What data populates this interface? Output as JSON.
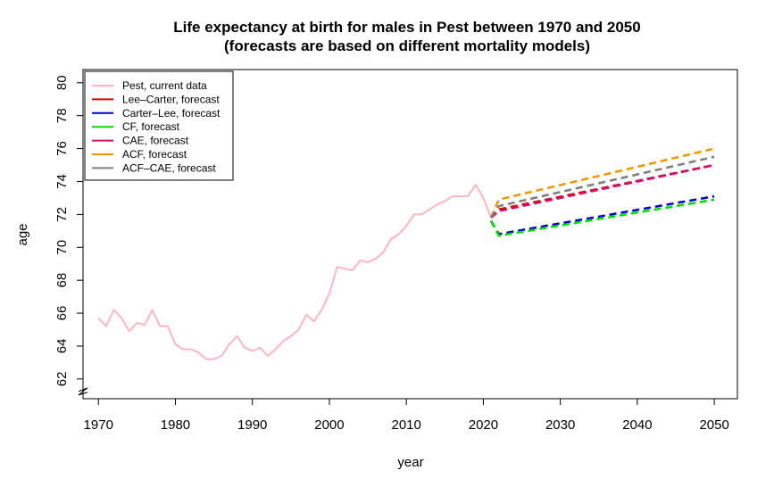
{
  "chart_data": {
    "type": "line",
    "title": "Life expectancy at birth for males in Pest between 1970 and 2050",
    "subtitle": "(forecasts are based on different mortality models)",
    "xlabel": "year",
    "ylabel": "age",
    "xlim": [
      1968,
      2053
    ],
    "ylim": [
      60.8,
      80.8
    ],
    "y_axis_break": true,
    "x_ticks": [
      1970,
      1980,
      1990,
      2000,
      2010,
      2020,
      2030,
      2040,
      2050
    ],
    "y_ticks": [
      62,
      64,
      66,
      68,
      70,
      72,
      74,
      76,
      78,
      80
    ],
    "grid": false,
    "legend_position": "top-left",
    "series": [
      {
        "name": "Pest, current data",
        "color": "#ffb6c1",
        "style": "solid",
        "x": [
          1970,
          1971,
          1972,
          1973,
          1974,
          1975,
          1976,
          1977,
          1978,
          1979,
          1980,
          1981,
          1982,
          1983,
          1984,
          1985,
          1986,
          1987,
          1988,
          1989,
          1990,
          1991,
          1992,
          1993,
          1994,
          1995,
          1996,
          1997,
          1998,
          1999,
          2000,
          2001,
          2002,
          2003,
          2004,
          2005,
          2006,
          2007,
          2008,
          2009,
          2010,
          2011,
          2012,
          2013,
          2014,
          2015,
          2016,
          2017,
          2018,
          2019,
          2020,
          2021
        ],
        "y": [
          65.7,
          65.2,
          66.2,
          65.7,
          64.9,
          65.4,
          65.3,
          66.2,
          65.2,
          65.2,
          64.1,
          63.8,
          63.8,
          63.6,
          63.2,
          63.2,
          63.4,
          64.1,
          64.6,
          63.9,
          63.7,
          63.9,
          63.4,
          63.8,
          64.3,
          64.6,
          65.0,
          65.9,
          65.5,
          66.2,
          67.2,
          68.8,
          68.7,
          68.6,
          69.2,
          69.1,
          69.3,
          69.7,
          70.5,
          70.8,
          71.3,
          72.0,
          72.0,
          72.3,
          72.6,
          72.8,
          73.1,
          73.1,
          73.1,
          73.8,
          73.0,
          71.8
        ]
      },
      {
        "name": "Lee–Carter, forecast",
        "color": "#e00000",
        "style": "dashed",
        "x": [
          2021,
          2022,
          2050
        ],
        "y": [
          71.8,
          72.3,
          75.0
        ]
      },
      {
        "name": "Carter–Lee, forecast",
        "color": "#0000cc",
        "style": "dashed",
        "x": [
          2021,
          2022,
          2050
        ],
        "y": [
          71.6,
          70.8,
          73.1
        ]
      },
      {
        "name": "CF, forecast",
        "color": "#00dd00",
        "style": "dashed",
        "x": [
          2021,
          2022,
          2050
        ],
        "y": [
          71.6,
          70.7,
          72.9
        ]
      },
      {
        "name": "CAE, forecast",
        "color": "#cc1177",
        "style": "dashed",
        "x": [
          2021,
          2022,
          2050
        ],
        "y": [
          71.8,
          72.2,
          75.0
        ]
      },
      {
        "name": "ACF, forecast",
        "color": "#ee9900",
        "style": "dashed",
        "x": [
          2021,
          2022,
          2050
        ],
        "y": [
          71.8,
          72.9,
          76.0
        ]
      },
      {
        "name": "ACF–CAE, forecast",
        "color": "#808080",
        "style": "dashed",
        "x": [
          2021,
          2022,
          2050
        ],
        "y": [
          71.8,
          72.5,
          75.5
        ]
      }
    ]
  }
}
